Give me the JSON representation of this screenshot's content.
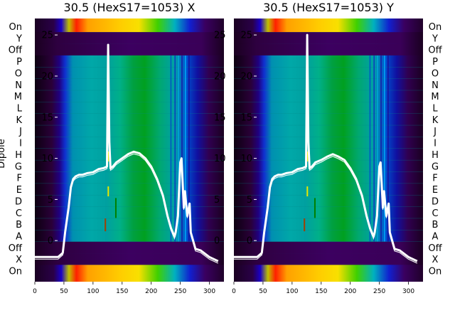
{
  "chart_data": [
    {
      "type": "heatmap",
      "title": "30.5 (HexS17=1053) X",
      "ylabel": "Dipole",
      "row_labels": [
        "On",
        "Y",
        "Off",
        "P",
        "O",
        "N",
        "M",
        "L",
        "K",
        "J",
        "I",
        "H",
        "G",
        "F",
        "E",
        "D",
        "C",
        "B",
        "A",
        "Off",
        "X",
        "On"
      ],
      "x_ticks": [
        0,
        50,
        100,
        150,
        200,
        250,
        300
      ],
      "xlim": [
        0,
        325
      ],
      "overlay_y_ticks": [
        25,
        20,
        15,
        10,
        5,
        0
      ],
      "overlay_ylim": [
        -5,
        27
      ],
      "overlay_line": {
        "color": "#ffffff",
        "x": [
          0,
          40,
          48,
          52,
          58,
          62,
          66,
          70,
          76,
          82,
          90,
          100,
          110,
          118,
          124,
          126,
          128,
          130,
          134,
          140,
          150,
          160,
          170,
          180,
          190,
          200,
          210,
          220,
          228,
          234,
          240,
          242,
          246,
          250,
          252,
          256,
          258,
          262,
          266,
          268,
          272,
          276,
          285,
          300,
          315
        ],
        "y": [
          -2.0,
          -2.0,
          -1.5,
          1.0,
          4.0,
          6.5,
          7.5,
          7.8,
          8.0,
          8.0,
          8.2,
          8.3,
          8.7,
          8.8,
          9.0,
          23.8,
          12.0,
          8.8,
          9.0,
          9.5,
          10.0,
          10.5,
          10.8,
          10.6,
          10.0,
          9.0,
          7.5,
          5.5,
          3.0,
          1.5,
          0.5,
          1.0,
          3.0,
          9.5,
          10.0,
          4.0,
          6.0,
          3.0,
          4.5,
          1.0,
          0.0,
          -1.0,
          -1.2,
          -2.0,
          -2.5
        ]
      }
    },
    {
      "type": "heatmap",
      "title": "30.5 (HexS17=1053) Y",
      "row_labels": [
        "On",
        "Y",
        "Off",
        "P",
        "O",
        "N",
        "M",
        "L",
        "K",
        "J",
        "I",
        "H",
        "G",
        "F",
        "E",
        "D",
        "C",
        "B",
        "A",
        "Off",
        "X",
        "On"
      ],
      "x_ticks": [
        0,
        50,
        100,
        150,
        200,
        250,
        300
      ],
      "xlim": [
        0,
        325
      ],
      "overlay_y_ticks": [
        25,
        20,
        15,
        10,
        5,
        0
      ],
      "overlay_ylim": [
        -5,
        27
      ],
      "overlay_line": {
        "color": "#ffffff",
        "x": [
          0,
          40,
          48,
          52,
          58,
          62,
          66,
          70,
          76,
          82,
          90,
          100,
          110,
          118,
          124,
          126,
          128,
          130,
          134,
          140,
          150,
          160,
          170,
          180,
          190,
          200,
          210,
          220,
          228,
          234,
          240,
          242,
          246,
          250,
          252,
          256,
          258,
          262,
          266,
          268,
          272,
          276,
          285,
          300,
          315
        ],
        "y": [
          -2.0,
          -2.0,
          -1.5,
          1.0,
          4.0,
          6.5,
          7.5,
          7.8,
          8.0,
          8.0,
          8.2,
          8.3,
          8.7,
          8.8,
          9.0,
          25.0,
          12.0,
          8.8,
          9.0,
          9.5,
          9.8,
          10.2,
          10.5,
          10.2,
          9.8,
          8.8,
          7.5,
          5.5,
          3.0,
          1.5,
          0.5,
          1.0,
          3.0,
          9.0,
          9.5,
          4.0,
          6.0,
          3.0,
          4.5,
          1.0,
          0.0,
          -1.0,
          -1.2,
          -2.0,
          -2.5
        ]
      }
    }
  ]
}
